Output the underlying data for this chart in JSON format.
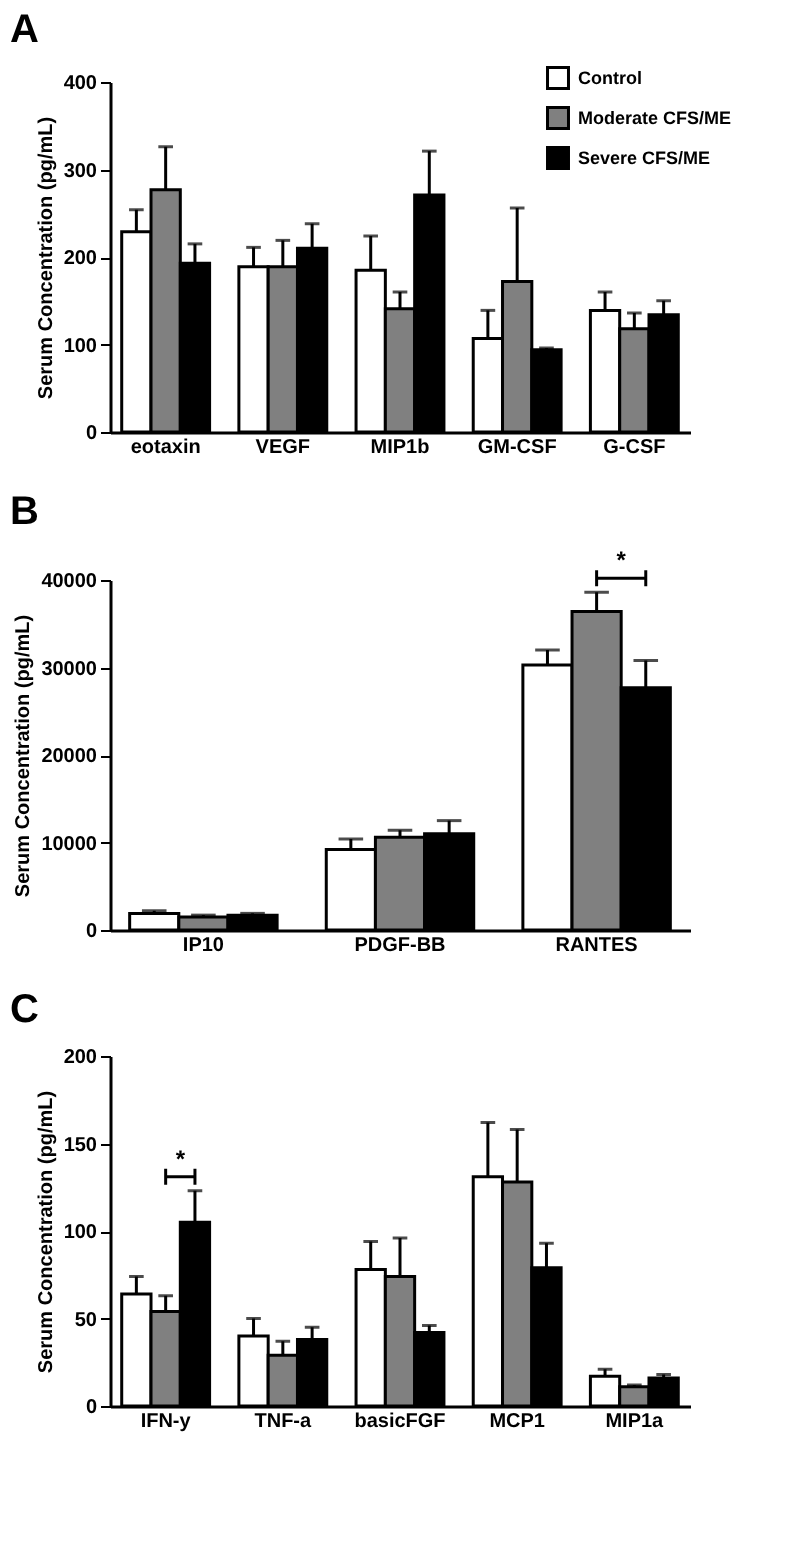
{
  "chart_data": [
    {
      "type": "bar",
      "title": "A",
      "ylabel": "Serum Concentration (pg/mL)",
      "categories": [
        "eotaxin",
        "VEGF",
        "MIP1b",
        "GM-CSF",
        "G-CSF"
      ],
      "series": [
        {
          "name": "Control",
          "color": "#ffffff",
          "values": [
            229,
            189,
            185,
            107,
            139
          ],
          "errors": [
            [
              229,
              254
            ],
            [
              189,
              211
            ],
            [
              185,
              224
            ],
            [
              107,
              139
            ],
            [
              139,
              160
            ]
          ]
        },
        {
          "name": "Moderate  CFS/ME",
          "color": "#808080",
          "values": [
            277,
            189,
            141,
            172,
            118
          ],
          "errors": [
            [
              277,
              326
            ],
            [
              189,
              219
            ],
            [
              141,
              160
            ],
            [
              172,
              256
            ],
            [
              118,
              136
            ]
          ]
        },
        {
          "name": "Severe CFS/ME",
          "color": "#000000",
          "values": [
            193,
            210,
            271,
            94,
            134
          ],
          "errors": [
            [
              193,
              215
            ],
            [
              210,
              238
            ],
            [
              271,
              321
            ],
            [
              94,
              96
            ],
            [
              134,
              150
            ]
          ]
        }
      ],
      "ylim": [
        0,
        400
      ],
      "yticks": [
        0,
        100,
        200,
        300,
        400
      ],
      "grid": false,
      "legend": "top right"
    },
    {
      "type": "bar",
      "title": "B",
      "ylabel": "Serum Concentration (pg/mL)",
      "categories": [
        "IP10",
        "PDGF-BB",
        "RANTES"
      ],
      "series": [
        {
          "color": "#ffffff",
          "values": [
            1900,
            9200,
            30300
          ],
          "errors": [
            [
              1900,
              2200
            ],
            [
              9200,
              10400
            ],
            [
              30300,
              32000
            ]
          ]
        },
        {
          "color": "#808080",
          "values": [
            1500,
            10600,
            36400
          ],
          "errors": [
            [
              1500,
              1700
            ],
            [
              10600,
              11400
            ],
            [
              36400,
              38600
            ]
          ]
        },
        {
          "color": "#000000",
          "values": [
            1700,
            11000,
            27700
          ],
          "errors": [
            [
              1700,
              1900
            ],
            [
              11000,
              12500
            ],
            [
              27700,
              30800
            ]
          ]
        }
      ],
      "annotations": [
        "*"
      ],
      "ylim": [
        0,
        40000
      ],
      "yticks": [
        0,
        10000,
        20000,
        30000,
        40000
      ],
      "grid": false
    },
    {
      "type": "bar",
      "title": "C",
      "ylabel": "Serum Concentration (pg/mL)",
      "categories": [
        "IFN-y",
        "TNF-a",
        "basicFGF",
        "MCP1",
        "MIP1a"
      ],
      "series": [
        {
          "color": "#ffffff",
          "values": [
            64,
            40,
            78,
            131,
            17
          ],
          "errors": [
            [
              64,
              74
            ],
            [
              40,
              50
            ],
            [
              78,
              94
            ],
            [
              131,
              162
            ],
            [
              17,
              21
            ]
          ]
        },
        {
          "color": "#808080",
          "values": [
            54,
            29,
            74,
            128,
            11
          ],
          "errors": [
            [
              54,
              63
            ],
            [
              29,
              37
            ],
            [
              74,
              96
            ],
            [
              128,
              158
            ],
            [
              11,
              12
            ]
          ]
        },
        {
          "color": "#000000",
          "values": [
            105,
            38,
            42,
            79,
            16
          ],
          "errors": [
            [
              105,
              123
            ],
            [
              38,
              45
            ],
            [
              42,
              46
            ],
            [
              79,
              93
            ],
            [
              16,
              18
            ]
          ]
        }
      ],
      "annotations": [
        "*"
      ],
      "ylim": [
        0,
        200
      ],
      "yticks": [
        0,
        50,
        100,
        150,
        200
      ],
      "grid": false
    }
  ]
}
